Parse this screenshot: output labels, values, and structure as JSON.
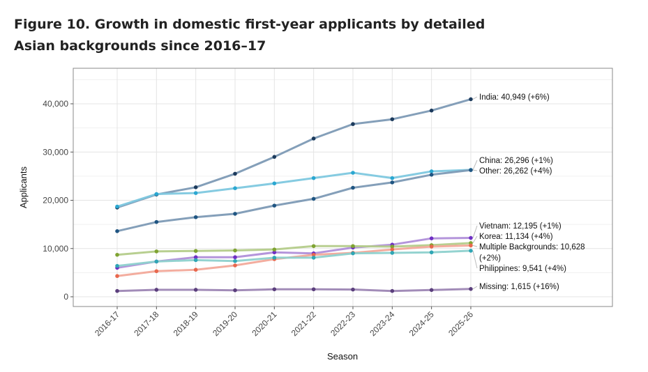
{
  "title": "Figure 10. Growth in domestic first-year applicants by detailed Asian backgrounds since 2016–17",
  "chart_data": {
    "type": "line",
    "xlabel": "Season",
    "ylabel": "Applicants",
    "ylim": [
      -2000,
      47000
    ],
    "yticks": [
      0,
      10000,
      20000,
      30000,
      40000
    ],
    "ytick_labels": [
      "0",
      "10,000",
      "20,000",
      "30,000",
      "40,000"
    ],
    "categories": [
      "2016-17",
      "2017-18",
      "2018-19",
      "2019-20",
      "2020-21",
      "2021-22",
      "2022-23",
      "2023-24",
      "2024-25",
      "2025-26"
    ],
    "grid": true,
    "legend": "direct labels at line ends",
    "series": [
      {
        "name": "India",
        "label": "India: 40,949 (+6%)",
        "color": "#7d9ab5",
        "dot": "#1b3a5c",
        "values": [
          18500,
          21200,
          22700,
          25500,
          29000,
          32800,
          35800,
          36800,
          38600,
          40949
        ]
      },
      {
        "name": "China",
        "label": "China: 26,296 (+1%)",
        "color": "#7ec8df",
        "dot": "#2aa7d1",
        "values": [
          18700,
          21300,
          21500,
          22500,
          23500,
          24600,
          25700,
          24600,
          26000,
          26296
        ]
      },
      {
        "name": "Other",
        "label": "Other: 26,262 (+4%)",
        "color": "#7d9ab5",
        "dot": "#1f5582",
        "values": [
          13600,
          15500,
          16500,
          17200,
          18900,
          20300,
          22600,
          23700,
          25300,
          26262
        ]
      },
      {
        "name": "Vietnam",
        "label": "Vietnam: 12,195 (+1%)",
        "color": "#b08fd9",
        "dot": "#6f2fc4",
        "values": [
          6000,
          7300,
          8200,
          8200,
          9200,
          9000,
          10200,
          10800,
          12100,
          12195
        ]
      },
      {
        "name": "Korea",
        "label": "Korea: 11,134 (+4%)",
        "color": "#b4cc8a",
        "dot": "#7fa332",
        "values": [
          8700,
          9400,
          9500,
          9600,
          9800,
          10500,
          10500,
          10400,
          10700,
          11134
        ]
      },
      {
        "name": "Multiple Backgrounds",
        "label": "Multiple Backgrounds: 10,628",
        "label2": "(+2%)",
        "color": "#f2a99a",
        "dot": "#e8684e",
        "values": [
          4300,
          5300,
          5600,
          6500,
          7800,
          8700,
          9100,
          9800,
          10400,
          10628
        ]
      },
      {
        "name": "Philippines",
        "label": "Philippines: 9,541 (+4%)",
        "color": "#8ed1cd",
        "dot": "#2fa6b5",
        "values": [
          6400,
          7300,
          7600,
          7400,
          8100,
          8100,
          9000,
          9100,
          9200,
          9541
        ]
      },
      {
        "name": "Missing",
        "label": "Missing: 1,615 (+16%)",
        "color": "#9d86b4",
        "dot": "#5b3f7d",
        "values": [
          1200,
          1450,
          1450,
          1350,
          1550,
          1550,
          1500,
          1200,
          1400,
          1615
        ]
      }
    ]
  }
}
